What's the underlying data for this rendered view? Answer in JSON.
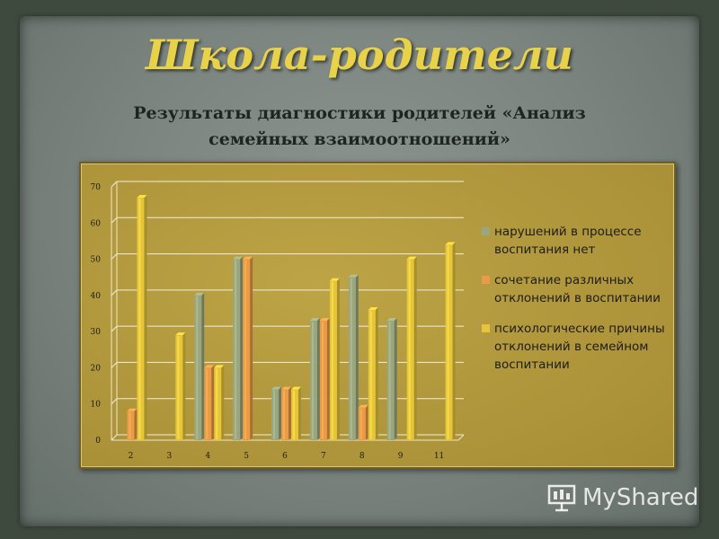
{
  "slide": {
    "title": "Школа-родители",
    "subtitle_line1": "Результаты диагностики родителей «Анализ",
    "subtitle_line2": "семейных взаимоотношений»"
  },
  "watermark": {
    "text": "MyShared",
    "icon": "presentation-board-icon"
  },
  "colors": {
    "series1": "#9aa67f",
    "series2": "#e99b47",
    "series3": "#e6c53c"
  },
  "chart_data": {
    "type": "bar",
    "categories": [
      "2",
      "3",
      "4",
      "5",
      "6",
      "7",
      "8",
      "9",
      "11"
    ],
    "series": [
      {
        "name": "нарушений в процессе воспитания нет",
        "values": [
          null,
          null,
          40,
          50,
          14,
          33,
          45,
          33,
          null
        ]
      },
      {
        "name": "сочетание различных отклонений в воспитании",
        "values": [
          8,
          null,
          20,
          50,
          14,
          33,
          9,
          null,
          null
        ]
      },
      {
        "name": "психологические причины отклонений в семейном воспитании",
        "values": [
          67,
          29,
          20,
          null,
          14,
          44,
          36,
          50,
          54
        ]
      }
    ],
    "yticks": [
      0,
      10,
      20,
      30,
      40,
      50,
      60,
      70
    ],
    "ylim": [
      0,
      70
    ],
    "grid": true,
    "legend_position": "right"
  }
}
